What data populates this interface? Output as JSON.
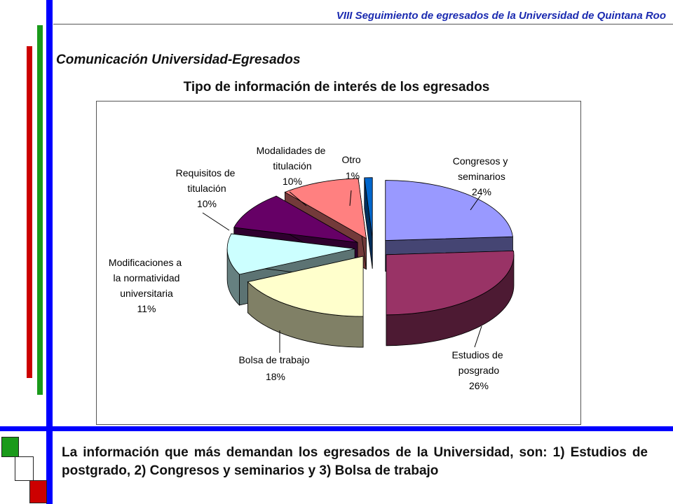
{
  "header": {
    "title": "VIII Seguimiento de egresados de la Universidad de Quintana Roo"
  },
  "section": {
    "title": "Comunicación Universidad-Egresados"
  },
  "chart_data": {
    "type": "pie",
    "title": "Tipo de información de interés de los egresados",
    "slices": [
      {
        "label": "Congresos y seminarios",
        "value": 24,
        "value_label": "24%",
        "color": "#9999ff"
      },
      {
        "label": "Estudios de posgrado",
        "value": 26,
        "value_label": "26%",
        "color": "#993366"
      },
      {
        "label": "Bolsa de trabajo",
        "value": 18,
        "value_label": "18%",
        "color": "#ffffcc"
      },
      {
        "label": "Modificaciones a la normatividad universitaria",
        "value": 11,
        "value_label": "11%",
        "color": "#ccffff"
      },
      {
        "label": "Requisitos de titulación",
        "value": 10,
        "value_label": "10%",
        "color": "#660066"
      },
      {
        "label": "Modalidades de titulación",
        "value": 10,
        "value_label": "10%",
        "color": "#ff8080"
      },
      {
        "label": "Otro",
        "value": 1,
        "value_label": "1%",
        "color": "#0066cc"
      }
    ],
    "legend": "none",
    "style": "3d-exploded"
  },
  "caption": {
    "text": "La información que más demandan los egresados de la Universidad, son: 1) Estudios de postgrado, 2) Congresos y seminarios y 3) Bolsa de trabajo"
  },
  "colors": {
    "accent_blue": "#0000ff",
    "accent_green": "#1a9a1a",
    "accent_red": "#cc0000",
    "header_text": "#1a2ab0"
  }
}
